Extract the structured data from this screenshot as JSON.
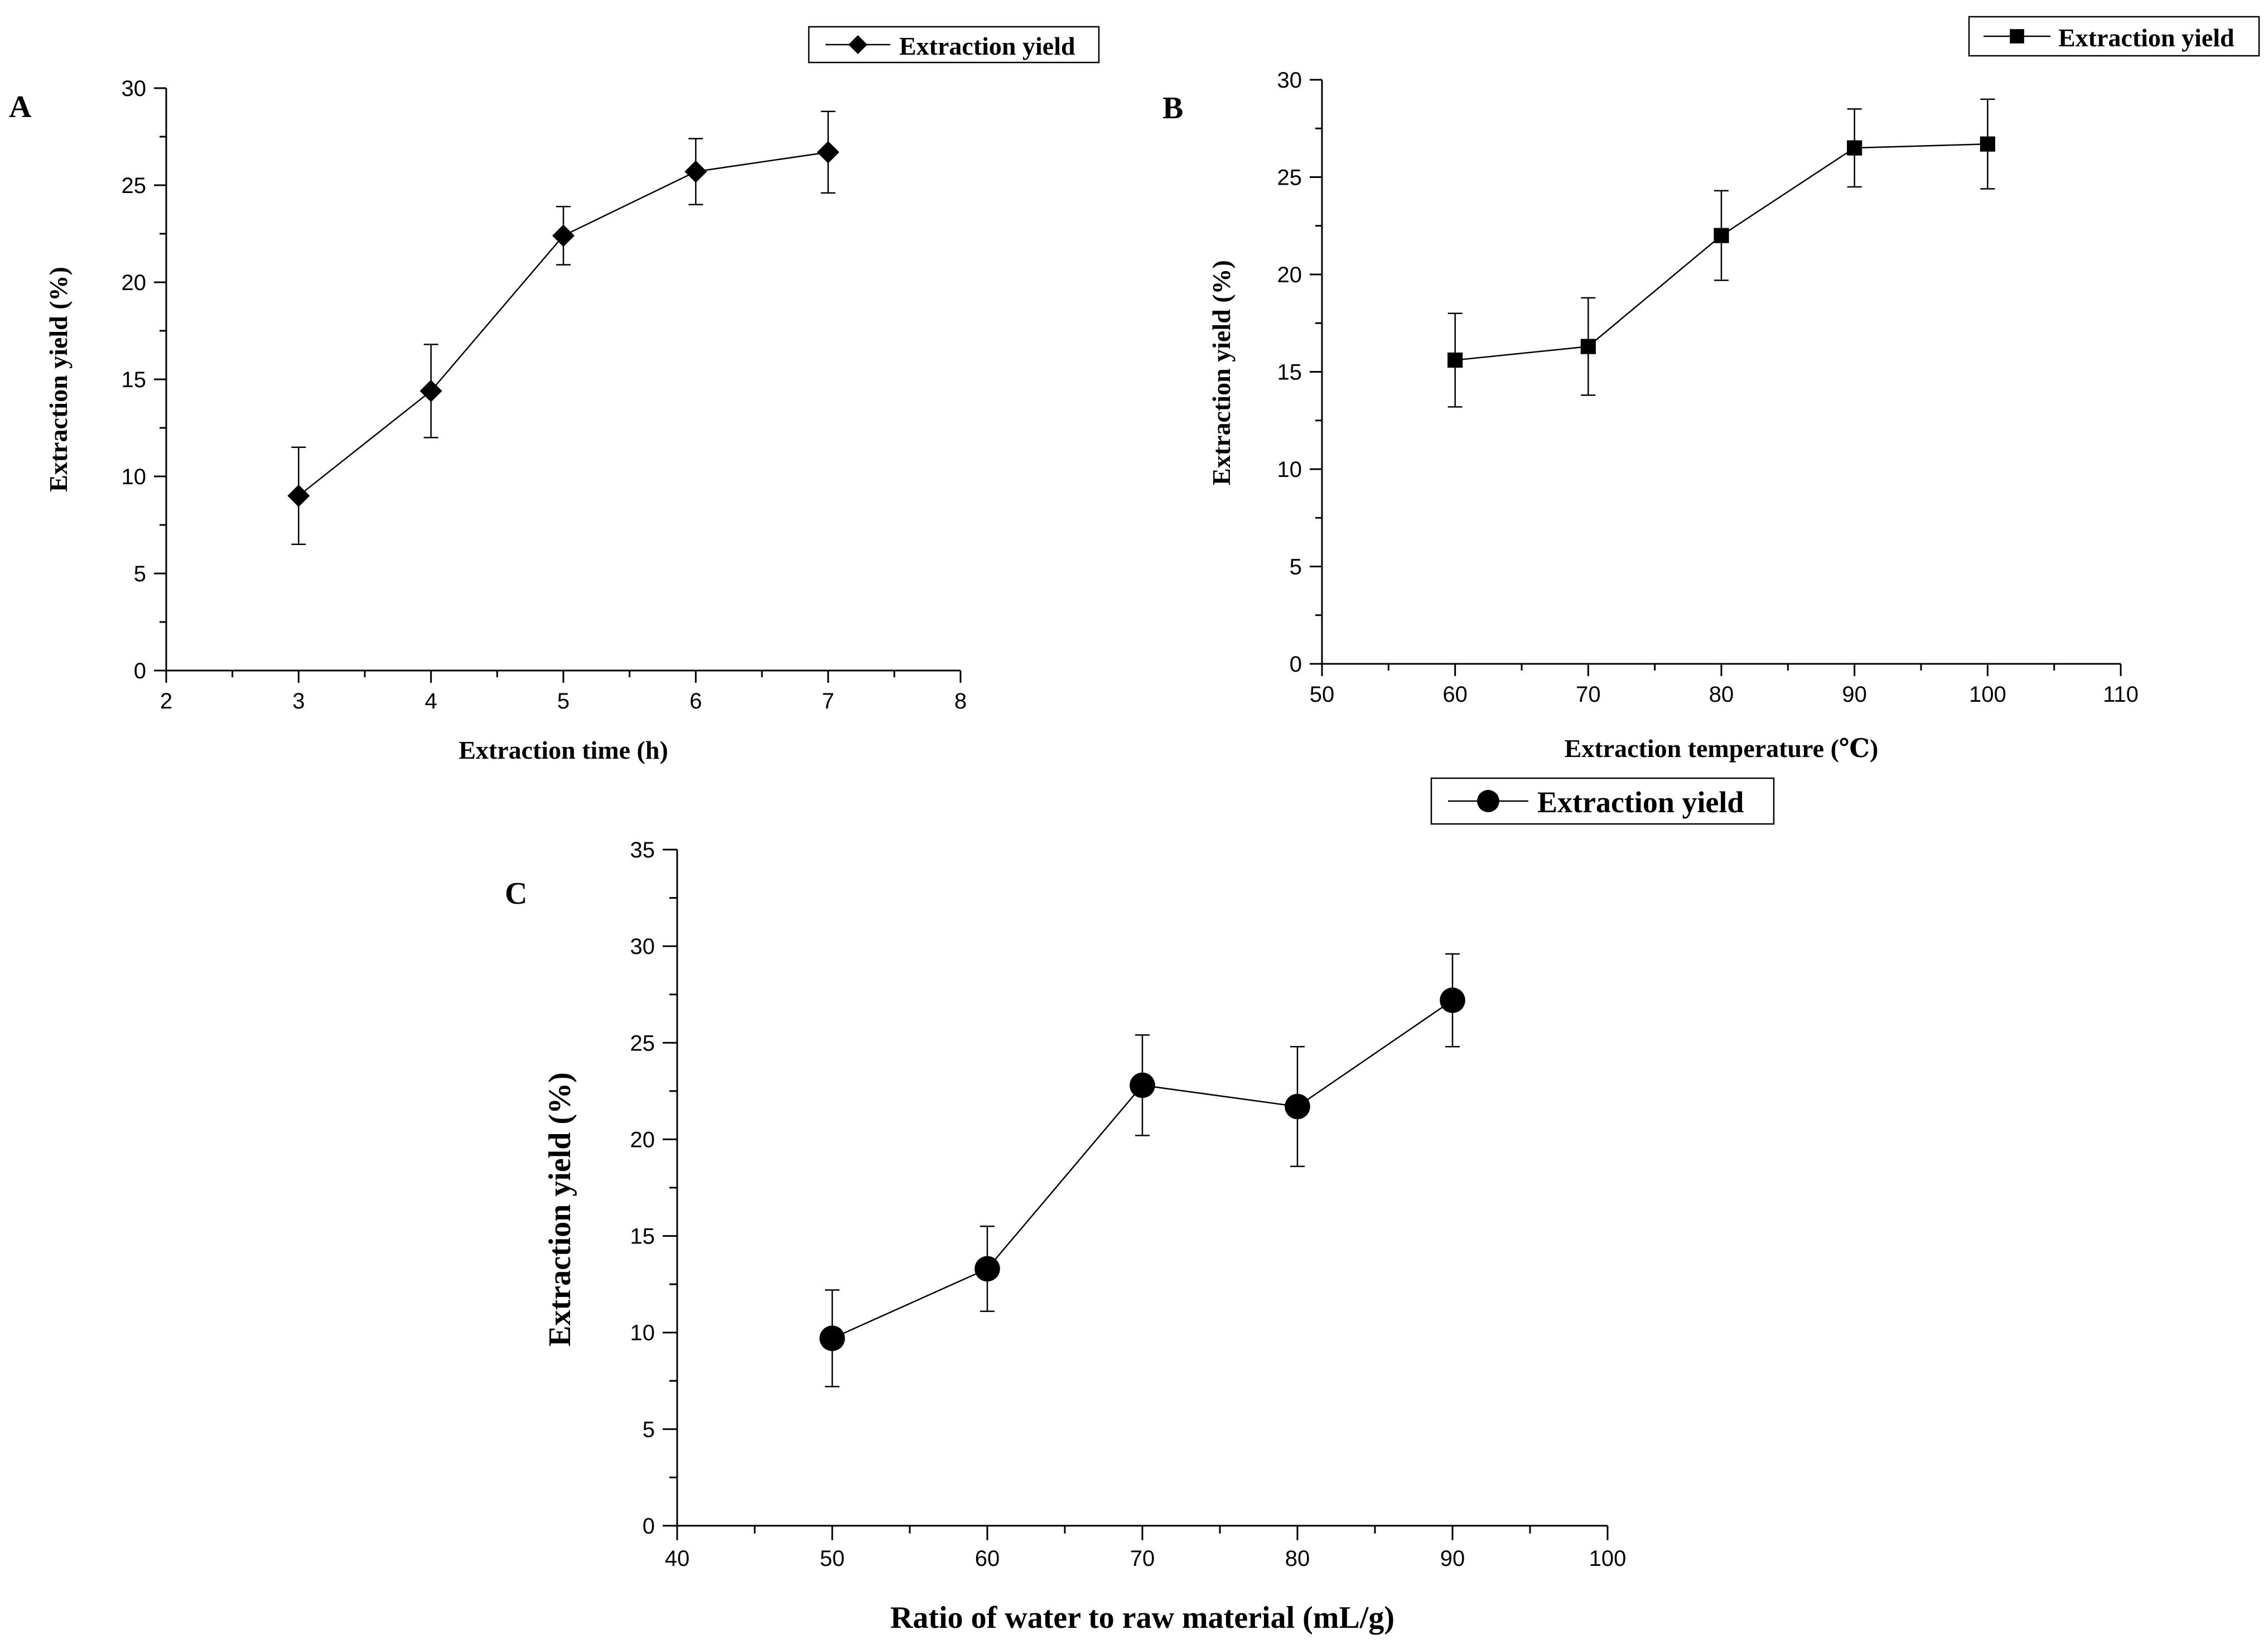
{
  "chart_data": [
    {
      "panel": "A",
      "type": "line",
      "marker": "diamond",
      "xlabel": "Extraction time (h)",
      "ylabel": "Extraction yield (%)",
      "xlim": [
        2,
        8
      ],
      "ylim": [
        0,
        30
      ],
      "xticks": [
        2,
        3,
        4,
        5,
        6,
        7,
        8
      ],
      "yticks": [
        0,
        5,
        10,
        15,
        20,
        25,
        30
      ],
      "legend": "Extraction yield",
      "series": [
        {
          "name": "Extraction yield",
          "x": [
            3,
            4,
            5,
            6,
            7
          ],
          "y": [
            9.0,
            14.4,
            22.4,
            25.7,
            26.7
          ],
          "error": [
            2.5,
            2.4,
            1.5,
            1.7,
            2.1
          ]
        }
      ]
    },
    {
      "panel": "B",
      "type": "line",
      "marker": "square",
      "xlabel": "Extraction temperature (℃)",
      "ylabel": "Extraction yield (%)",
      "xlim": [
        50,
        110
      ],
      "ylim": [
        0,
        30
      ],
      "xticks": [
        50,
        60,
        70,
        80,
        90,
        100,
        110
      ],
      "yticks": [
        0,
        5,
        10,
        15,
        20,
        25,
        30
      ],
      "legend": "Extraction yield",
      "series": [
        {
          "name": "Extraction yield",
          "x": [
            60,
            70,
            80,
            90,
            100
          ],
          "y": [
            15.6,
            16.3,
            22.0,
            26.5,
            26.7
          ],
          "error": [
            2.4,
            2.5,
            2.3,
            2.0,
            2.3
          ]
        }
      ]
    },
    {
      "panel": "C",
      "type": "line",
      "marker": "circle",
      "xlabel": "Ratio of water to raw material (mL/g)",
      "ylabel": "Extraction yield (%)",
      "xlim": [
        40,
        100
      ],
      "ylim": [
        0,
        35
      ],
      "xticks": [
        40,
        50,
        60,
        70,
        80,
        90,
        100
      ],
      "yticks": [
        0,
        5,
        10,
        15,
        20,
        25,
        30,
        35
      ],
      "legend": "Extraction yield",
      "series": [
        {
          "name": "Extraction yield",
          "x": [
            50,
            60,
            70,
            80,
            90
          ],
          "y": [
            9.7,
            13.3,
            22.8,
            21.7,
            27.2
          ],
          "error": [
            2.5,
            2.2,
            2.6,
            3.1,
            2.4
          ]
        }
      ]
    }
  ]
}
